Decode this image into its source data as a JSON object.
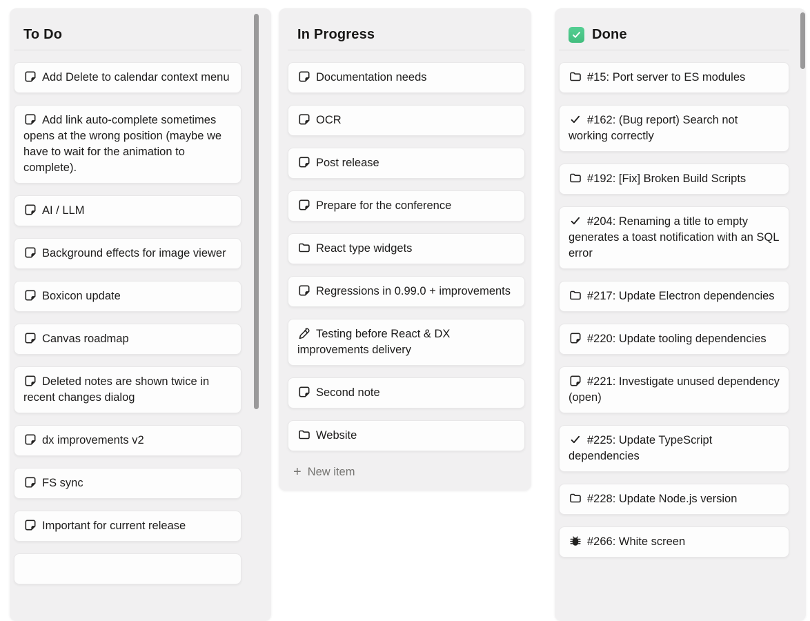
{
  "board": {
    "columns": [
      {
        "id": "todo",
        "title": "To Do",
        "title_icon": null,
        "items": [
          {
            "icon": "note",
            "text": "Add Delete to calendar context menu"
          },
          {
            "icon": "note",
            "text": "Add link auto-complete sometimes opens at the wrong position (maybe we have to wait for the animation to complete)."
          },
          {
            "icon": "note",
            "text": "AI / LLM"
          },
          {
            "icon": "note",
            "text": "Background effects for image viewer"
          },
          {
            "icon": "note",
            "text": "Boxicon update"
          },
          {
            "icon": "note",
            "text": "Canvas roadmap"
          },
          {
            "icon": "note",
            "text": "Deleted notes are shown twice in recent changes dialog"
          },
          {
            "icon": "note",
            "text": "dx improvements v2"
          },
          {
            "icon": "note",
            "text": "FS sync"
          },
          {
            "icon": "note",
            "text": "Important for current release"
          },
          {
            "icon": "none",
            "text": "",
            "partial": true
          }
        ],
        "footer": null,
        "has_scrollbar": true
      },
      {
        "id": "in-progress",
        "title": "In Progress",
        "title_icon": null,
        "items": [
          {
            "icon": "note",
            "text": "Documentation needs"
          },
          {
            "icon": "note",
            "text": "OCR"
          },
          {
            "icon": "note",
            "text": "Post release"
          },
          {
            "icon": "note",
            "text": "Prepare for the conference"
          },
          {
            "icon": "folder",
            "text": "React type widgets"
          },
          {
            "icon": "note",
            "text": "Regressions in 0.99.0 + improvements"
          },
          {
            "icon": "pencil",
            "text": "Testing before React & DX improvements delivery"
          },
          {
            "icon": "note",
            "text": "Second note"
          },
          {
            "icon": "folder",
            "text": "Website"
          }
        ],
        "footer": {
          "plus": "+",
          "label": "New item"
        },
        "has_scrollbar": false
      },
      {
        "id": "done",
        "title": "Done",
        "title_icon": "green-checkbox",
        "items": [
          {
            "icon": "folder",
            "text": "#15: Port server to ES modules"
          },
          {
            "icon": "check",
            "text": "#162: (Bug report) Search not working correctly"
          },
          {
            "icon": "folder",
            "text": "#192: [Fix] Broken Build Scripts"
          },
          {
            "icon": "check",
            "text": "#204: Renaming a title to empty generates a toast notification with an SQL error"
          },
          {
            "icon": "folder",
            "text": "#217: Update Electron dependencies"
          },
          {
            "icon": "note",
            "text": "#220: Update tooling dependencies"
          },
          {
            "icon": "note",
            "text": "#221: Investigate unused dependency (open)"
          },
          {
            "icon": "check",
            "text": "#225: Update TypeScript dependencies"
          },
          {
            "icon": "folder",
            "text": "#228: Update Node.js version"
          },
          {
            "icon": "bug",
            "text": "#266: White screen"
          }
        ],
        "footer": null,
        "has_scrollbar": true
      }
    ]
  },
  "colors": {
    "page_bg": "#ffffff",
    "panel_bg": "#f1f0f1",
    "card_bg": "#fdfdfd",
    "card_border": "#e8e7e8",
    "text": "#1d1c1b",
    "muted_text": "#767572",
    "divider": "#dcdbdc",
    "scrollbar_thumb": "#9a999a",
    "done_checkbox_green": "#4cc88a"
  }
}
